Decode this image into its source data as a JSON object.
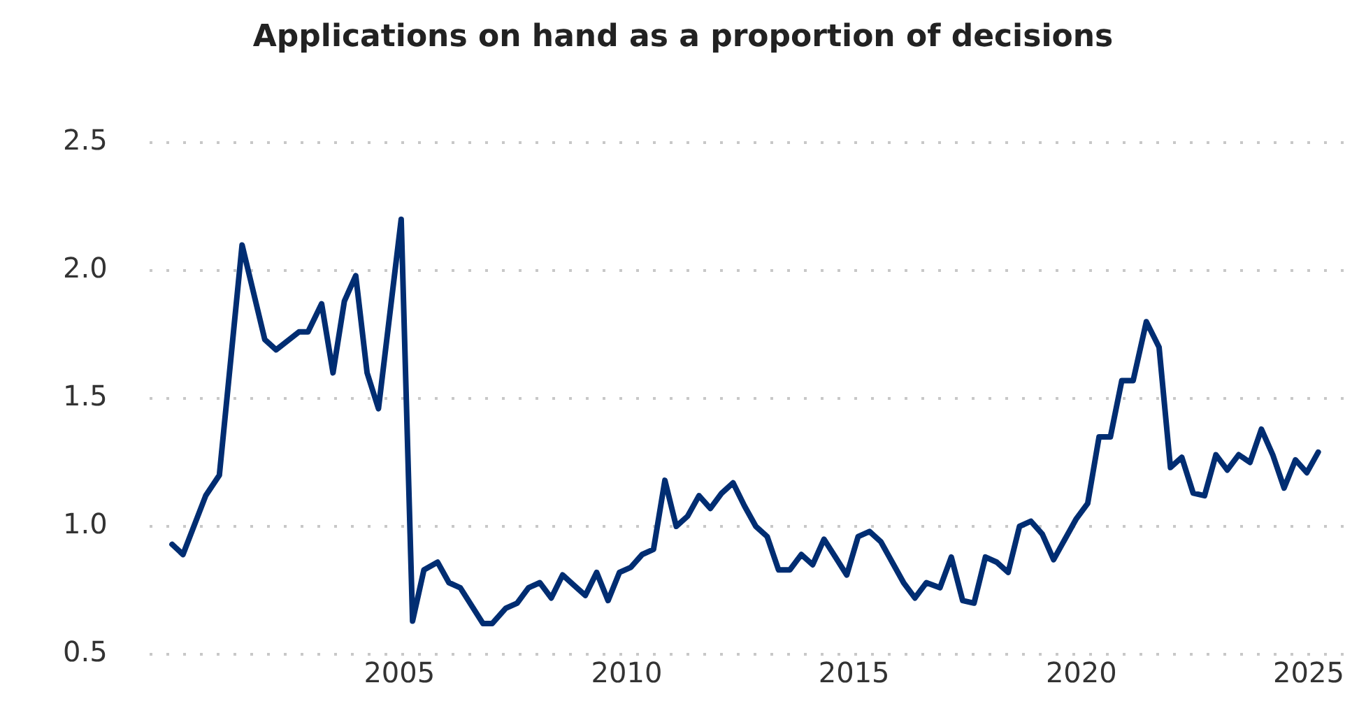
{
  "chart_data": {
    "type": "line",
    "title": "Applications on hand as a proportion of decisions",
    "x": [
      2000.0,
      2000.24,
      2000.74,
      2001.04,
      2001.54,
      2002.04,
      2002.29,
      2002.79,
      2002.99,
      2003.29,
      2003.54,
      2003.79,
      2004.04,
      2004.29,
      2004.54,
      2005.04,
      2005.29,
      2005.54,
      2005.84,
      2006.09,
      2006.34,
      2006.84,
      2007.04,
      2007.34,
      2007.59,
      2007.84,
      2008.09,
      2008.34,
      2008.59,
      2008.84,
      2009.09,
      2009.34,
      2009.59,
      2009.84,
      2010.09,
      2010.34,
      2010.59,
      2010.84,
      2011.09,
      2011.34,
      2011.59,
      2011.84,
      2012.09,
      2012.34,
      2012.59,
      2012.84,
      2013.09,
      2013.34,
      2013.59,
      2013.84,
      2014.09,
      2014.34,
      2014.59,
      2014.84,
      2015.09,
      2015.34,
      2015.59,
      2015.84,
      2016.09,
      2016.34,
      2016.59,
      2016.89,
      2017.14,
      2017.39,
      2017.64,
      2017.89,
      2018.14,
      2018.39,
      2018.64,
      2018.89,
      2019.14,
      2019.39,
      2019.64,
      2019.89,
      2020.14,
      2020.39,
      2020.64,
      2020.89,
      2021.14,
      2021.43,
      2021.71,
      2021.96,
      2022.21,
      2022.46,
      2022.71,
      2022.96,
      2023.21,
      2023.46,
      2023.71,
      2023.96,
      2024.21,
      2024.46,
      2024.71,
      2024.96,
      2025.21
    ],
    "series": [
      {
        "color": "#002d72",
        "values": [
          0.93,
          0.89,
          1.12,
          1.2,
          2.1,
          1.73,
          1.69,
          1.76,
          1.76,
          1.87,
          1.6,
          1.88,
          1.98,
          1.6,
          1.46,
          2.2,
          0.63,
          0.83,
          0.86,
          0.78,
          0.76,
          0.62,
          0.62,
          0.68,
          0.7,
          0.76,
          0.78,
          0.72,
          0.81,
          0.77,
          0.73,
          0.82,
          0.71,
          0.82,
          0.84,
          0.89,
          0.91,
          1.18,
          1.0,
          1.04,
          1.12,
          1.07,
          1.13,
          1.17,
          1.08,
          1.0,
          0.96,
          0.83,
          0.83,
          0.89,
          0.85,
          0.95,
          0.88,
          0.81,
          0.96,
          0.98,
          0.94,
          0.86,
          0.78,
          0.72,
          0.78,
          0.76,
          0.88,
          0.71,
          0.7,
          0.88,
          0.86,
          0.82,
          1.0,
          1.02,
          0.97,
          0.87,
          0.95,
          1.03,
          1.09,
          1.35,
          1.35,
          1.57,
          1.57,
          1.8,
          1.7,
          1.23,
          1.27,
          1.13,
          1.12,
          1.28,
          1.22,
          1.28,
          1.25,
          1.38,
          1.28,
          1.15,
          1.26,
          1.21,
          1.29
        ]
      }
    ],
    "xlim": [
      1999.5,
      2025.8
    ],
    "xticks": [
      2005,
      2010,
      2015,
      2020,
      2025
    ],
    "ylim": [
      0.5,
      2.5
    ],
    "yticks": [
      0.5,
      {
        "value": 1,
        "label": "1.0"
      },
      1.5,
      {
        "value": 2,
        "label": "2.0"
      },
      2.5
    ],
    "grid": "y",
    "legend": false,
    "marker": "none",
    "line_style": "solid"
  }
}
